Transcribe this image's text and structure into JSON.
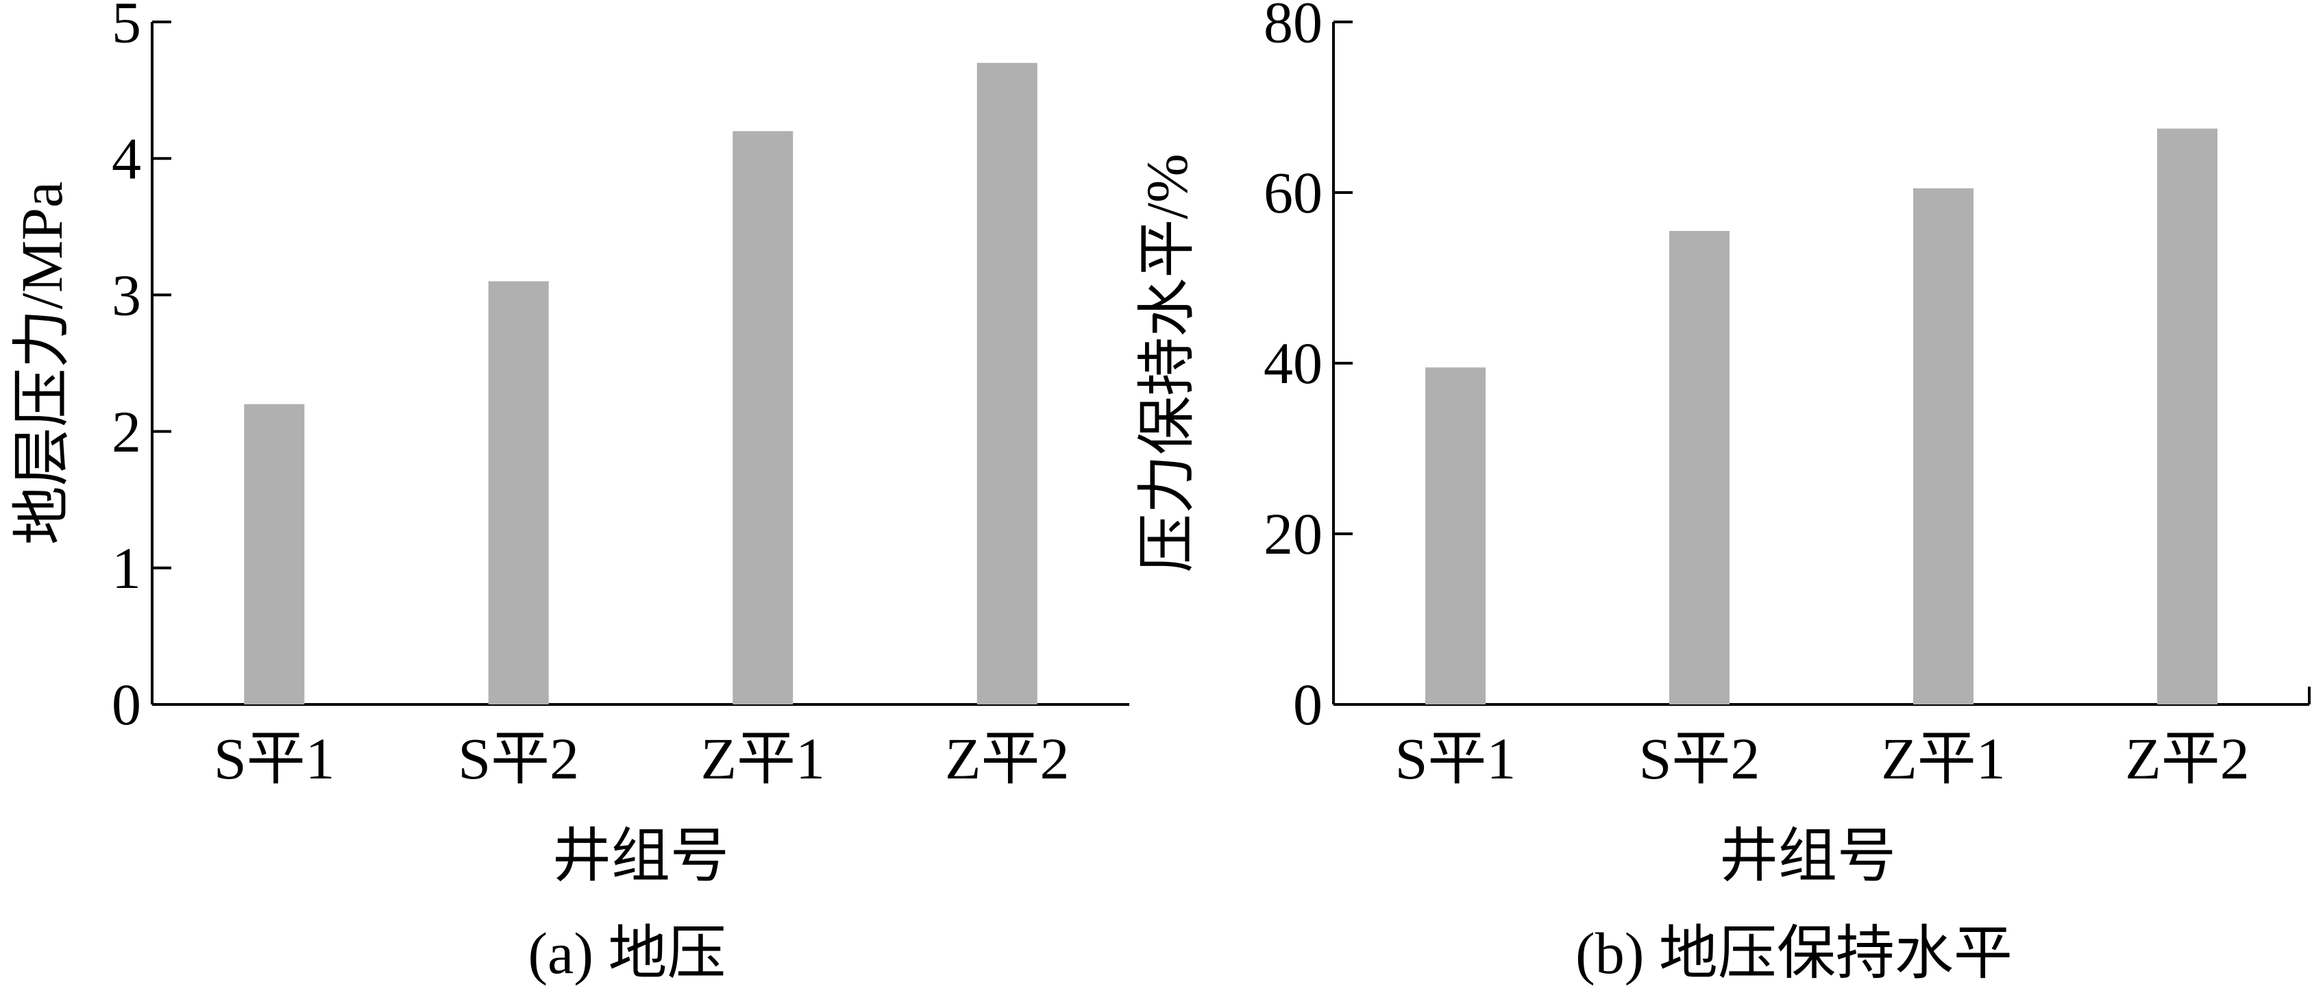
{
  "chart_data": [
    {
      "type": "bar",
      "caption": "(a) 地压",
      "categories": [
        "S平1",
        "S平2",
        "Z平1",
        "Z平2"
      ],
      "values": [
        2.2,
        3.1,
        4.2,
        4.7
      ],
      "xlabel": "井组号",
      "ylabel": "地层压力/MPa",
      "ylim": [
        0,
        5
      ],
      "yticks": [
        0,
        1,
        2,
        3,
        4,
        5
      ],
      "grid": false,
      "bar_color": "#b0b0b0"
    },
    {
      "type": "bar",
      "caption": "(b) 地压保持水平",
      "categories": [
        "S平1",
        "S平2",
        "Z平1",
        "Z平2"
      ],
      "values": [
        39.5,
        55.5,
        60.5,
        67.5
      ],
      "xlabel": "井组号",
      "ylabel": "压力保持水平/%",
      "ylim": [
        0,
        80
      ],
      "yticks": [
        0,
        20,
        40,
        60,
        80
      ],
      "grid": false,
      "bar_color": "#b0b0b0"
    }
  ]
}
